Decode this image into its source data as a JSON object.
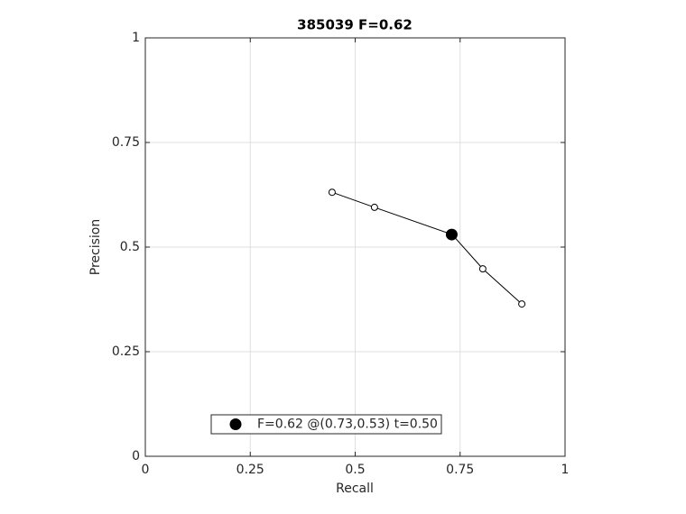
{
  "chart_data": {
    "type": "line",
    "title": "385039 F=0.62",
    "xlabel": "Recall",
    "ylabel": "Precision",
    "xlim": [
      0,
      1
    ],
    "ylim": [
      0,
      1
    ],
    "xticks": [
      0,
      0.25,
      0.5,
      0.75,
      1
    ],
    "yticks": [
      0,
      0.25,
      0.5,
      0.75,
      1
    ],
    "grid": true,
    "legend": "lower center",
    "series": [
      {
        "color": "#000000",
        "marker": "open-circle",
        "line": true,
        "x": [
          0.445,
          0.546,
          0.731,
          0.804,
          0.897
        ],
        "values": [
          0.631,
          0.595,
          0.53,
          0.448,
          0.364
        ]
      },
      {
        "name": "F=0.62 @(0.73,0.53) t=0.50",
        "color": "#000000",
        "marker": "filled-circle",
        "line": false,
        "x": [
          0.73
        ],
        "values": [
          0.53
        ]
      }
    ]
  }
}
